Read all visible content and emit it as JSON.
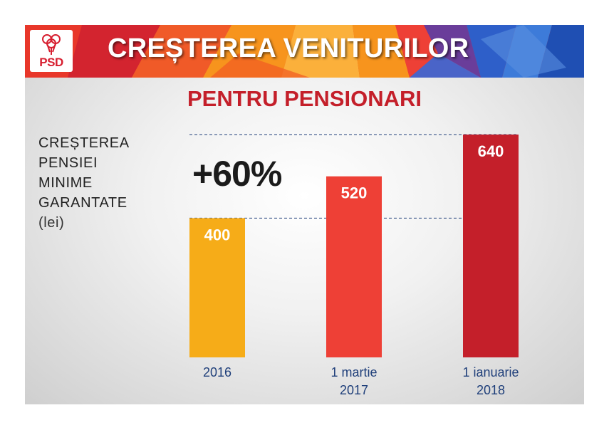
{
  "header": {
    "logo_text": "PSD",
    "title": "CREȘTEREA VENITURILOR"
  },
  "subtitle": "PENTRU PENSIONARI",
  "side_label": {
    "lines": [
      "CREȘTEREA",
      "PENSIEI",
      "MINIME",
      "GARANTATE"
    ],
    "unit": "(lei)"
  },
  "increase_label": "+60%",
  "colors": {
    "brand_red": "#c41f2a",
    "bar_2016": "#f6ac18",
    "bar_2017": "#ee4036",
    "bar_2018": "#c41f2a",
    "tick_text": "#1f3f7a"
  },
  "chart_data": {
    "type": "bar",
    "title": "PENTRU PENSIONARI",
    "ylabel": "CREȘTEREA PENSIEI MINIME GARANTATE (lei)",
    "categories": [
      [
        "2016"
      ],
      [
        "1 martie",
        "2017"
      ],
      [
        "1 ianuarie",
        "2018"
      ]
    ],
    "values": [
      400,
      520,
      640
    ],
    "ylim": [
      0,
      640
    ],
    "grid": false,
    "reference_lines": [
      400,
      640
    ],
    "annotation": "+60%"
  }
}
